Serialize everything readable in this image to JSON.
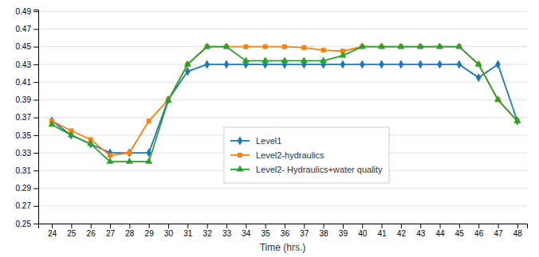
{
  "chart_data": {
    "type": "line",
    "x": [
      24,
      25,
      26,
      27,
      28,
      29,
      30,
      31,
      32,
      33,
      34,
      35,
      36,
      37,
      38,
      39,
      40,
      41,
      42,
      43,
      44,
      45,
      46,
      47,
      48
    ],
    "series": [
      {
        "name": "Level1",
        "marker": "diamond",
        "values": [
          0.366,
          0.35,
          0.34,
          0.33,
          0.33,
          0.33,
          0.39,
          0.422,
          0.43,
          0.43,
          0.43,
          0.43,
          0.43,
          0.43,
          0.43,
          0.43,
          0.43,
          0.43,
          0.43,
          0.43,
          0.43,
          0.43,
          0.415,
          0.43,
          0.366
        ]
      },
      {
        "name": "Level2-hydraulics",
        "marker": "square",
        "values": [
          0.366,
          0.355,
          0.345,
          0.327,
          0.33,
          0.366,
          0.39,
          0.43,
          0.45,
          0.45,
          0.45,
          0.45,
          0.45,
          0.449,
          0.446,
          0.445,
          0.45,
          0.45,
          0.45,
          0.45,
          0.45,
          0.45,
          0.43,
          0.39,
          0.366
        ]
      },
      {
        "name": "Level2- Hydraulics+water quality",
        "marker": "triangle",
        "values": [
          0.362,
          0.35,
          0.34,
          0.32,
          0.32,
          0.32,
          0.389,
          0.43,
          0.45,
          0.45,
          0.434,
          0.434,
          0.434,
          0.434,
          0.434,
          0.44,
          0.45,
          0.45,
          0.45,
          0.45,
          0.45,
          0.45,
          0.43,
          0.39,
          0.366
        ]
      }
    ],
    "x_label": "Time (hrs.)",
    "xlim": [
      23.3,
      48.5
    ],
    "xticks": [
      24,
      25,
      26,
      27,
      28,
      29,
      30,
      31,
      32,
      33,
      34,
      35,
      36,
      37,
      38,
      39,
      40,
      41,
      42,
      43,
      44,
      45,
      46,
      47,
      48
    ],
    "ylim": [
      0.25,
      0.492
    ],
    "yticks": [
      0.25,
      0.27,
      0.29,
      0.31,
      0.33,
      0.35,
      0.37,
      0.39,
      0.41,
      0.43,
      0.45,
      0.47,
      0.49
    ],
    "grid": true,
    "legend": "center"
  }
}
